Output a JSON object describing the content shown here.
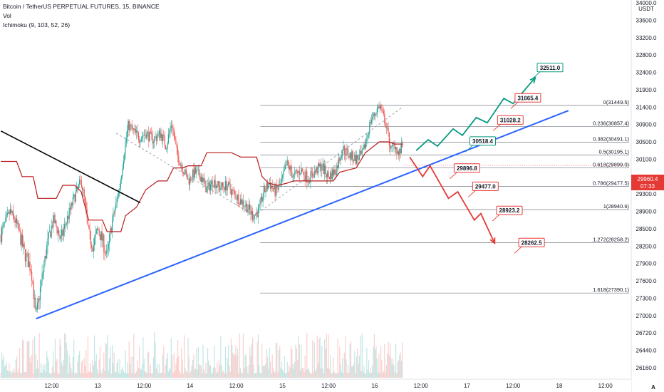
{
  "legend": {
    "symbol": "Bitcoin / TetherUS PERPETUAL FUTURES, 15, BINANCE",
    "vol": "Vol",
    "ichimoku": "Ichimoku (9, 103, 52, 26)"
  },
  "colors": {
    "up": "#26a69a",
    "down": "#ef5350",
    "blue": "#2962ff",
    "green": "#089981",
    "red": "#e53935",
    "black": "#000000",
    "fib": "#787b86",
    "cloud": "#b71c1c"
  },
  "price": {
    "current": "29960.4",
    "countdown": "07:33",
    "value": 29960.4
  },
  "chart_data": {
    "type": "candlestick",
    "currency": "USDT",
    "y_ticks": [
      26160,
      26440,
      26720,
      27000,
      27300,
      27600,
      27900,
      28200,
      28500,
      28900,
      29300,
      29700,
      30100,
      30500,
      30900,
      31400,
      31900,
      32400,
      32800,
      33200,
      33600,
      34000
    ],
    "y_tick_labels": [
      "26160.0",
      "26440.0",
      "26720.0",
      "27000.0",
      "27300.0",
      "27600.0",
      "27900.0",
      "28200.0",
      "28500.0",
      "28900.0",
      "29300.0",
      "29700.0",
      "30100.0",
      "30500.0",
      "30900.0",
      "31400.0",
      "31900.0",
      "32400.0",
      "32800.0",
      "33200.0",
      "33600.0",
      "34000.0"
    ],
    "x_ticks": [
      {
        "label": "12:00",
        "t": 0.5
      },
      {
        "label": "13",
        "t": 1.0
      },
      {
        "label": "12:00",
        "t": 1.5
      },
      {
        "label": "14",
        "t": 2.0
      },
      {
        "label": "12:00",
        "t": 2.5
      },
      {
        "label": "15",
        "t": 3.0
      },
      {
        "label": "12:00",
        "t": 3.5
      },
      {
        "label": "16",
        "t": 4.0
      },
      {
        "label": "12:00",
        "t": 4.5
      },
      {
        "label": "17",
        "t": 5.0
      },
      {
        "label": "12:00",
        "t": 5.5
      },
      {
        "label": "18",
        "t": 6.0
      },
      {
        "label": "12:00",
        "t": 6.5
      }
    ],
    "fib_levels": [
      {
        "label": "0(31449.5)",
        "price": 31449.5
      },
      {
        "label": "0.236(30857.4)",
        "price": 30857.4
      },
      {
        "label": "0.382(30491.1)",
        "price": 30491.1
      },
      {
        "label": "0.5(30195.1)",
        "price": 30195.1
      },
      {
        "label": "0.618(29899.0)",
        "price": 29899.0
      },
      {
        "label": "0.786(29477.5)",
        "price": 29477.5
      },
      {
        "label": "1(28940.6)",
        "price": 28940.6
      },
      {
        "label": "1.272(28258.2)",
        "price": 28258.2
      },
      {
        "label": "1.618(27390.1)",
        "price": 27390.1
      }
    ],
    "fib_range": {
      "t_start": 2.76,
      "t_end": 4.62
    },
    "price_path": [
      [
        -0.05,
        28400
      ],
      [
        0.05,
        28900
      ],
      [
        0.12,
        28600
      ],
      [
        0.2,
        28100
      ],
      [
        0.28,
        27800
      ],
      [
        0.33,
        26950
      ],
      [
        0.38,
        27500
      ],
      [
        0.45,
        28200
      ],
      [
        0.52,
        28700
      ],
      [
        0.6,
        28300
      ],
      [
        0.68,
        28800
      ],
      [
        0.75,
        29250
      ],
      [
        0.82,
        29600
      ],
      [
        0.86,
        29100
      ],
      [
        0.9,
        28400
      ],
      [
        0.95,
        28200
      ],
      [
        1.0,
        28500
      ],
      [
        1.05,
        28300
      ],
      [
        1.1,
        28000
      ],
      [
        1.15,
        28600
      ],
      [
        1.2,
        29100
      ],
      [
        1.24,
        29500
      ],
      [
        1.28,
        30200
      ],
      [
        1.33,
        30900
      ],
      [
        1.38,
        30750
      ],
      [
        1.45,
        30600
      ],
      [
        1.52,
        30700
      ],
      [
        1.6,
        30550
      ],
      [
        1.68,
        30700
      ],
      [
        1.74,
        30400
      ],
      [
        1.8,
        30950
      ],
      [
        1.86,
        30200
      ],
      [
        1.92,
        29900
      ],
      [
        1.98,
        29600
      ],
      [
        2.05,
        29800
      ],
      [
        2.12,
        29700
      ],
      [
        2.18,
        29400
      ],
      [
        2.25,
        29600
      ],
      [
        2.32,
        29450
      ],
      [
        2.4,
        29500
      ],
      [
        2.48,
        29300
      ],
      [
        2.55,
        29150
      ],
      [
        2.62,
        29000
      ],
      [
        2.68,
        28800
      ],
      [
        2.74,
        28900
      ],
      [
        2.8,
        29350
      ],
      [
        2.86,
        29550
      ],
      [
        2.92,
        29350
      ],
      [
        2.98,
        29500
      ],
      [
        3.05,
        30000
      ],
      [
        3.12,
        29700
      ],
      [
        3.2,
        29850
      ],
      [
        3.28,
        29650
      ],
      [
        3.35,
        29800
      ],
      [
        3.42,
        29950
      ],
      [
        3.5,
        29700
      ],
      [
        3.58,
        29850
      ],
      [
        3.65,
        30350
      ],
      [
        3.72,
        30200
      ],
      [
        3.8,
        30100
      ],
      [
        3.87,
        30200
      ],
      [
        3.92,
        30650
      ],
      [
        3.96,
        31050
      ],
      [
        4.0,
        31200
      ],
      [
        4.05,
        31450
      ],
      [
        4.1,
        31100
      ],
      [
        4.14,
        30700
      ],
      [
        4.18,
        30300
      ],
      [
        4.22,
        30450
      ],
      [
        4.26,
        30200
      ],
      [
        4.3,
        30400
      ]
    ],
    "ichimoku_path": [
      [
        -0.05,
        30050
      ],
      [
        0.12,
        30050
      ],
      [
        0.18,
        29700
      ],
      [
        0.3,
        29700
      ],
      [
        0.35,
        29200
      ],
      [
        0.55,
        29200
      ],
      [
        0.62,
        29500
      ],
      [
        0.75,
        29500
      ],
      [
        0.82,
        29350
      ],
      [
        0.9,
        28700
      ],
      [
        1.05,
        28700
      ],
      [
        1.1,
        28450
      ],
      [
        1.25,
        28450
      ],
      [
        1.3,
        28800
      ],
      [
        1.42,
        29000
      ],
      [
        1.52,
        29400
      ],
      [
        1.65,
        29600
      ],
      [
        1.75,
        29600
      ],
      [
        1.82,
        29900
      ],
      [
        1.92,
        29900
      ],
      [
        1.98,
        29950
      ],
      [
        2.12,
        29950
      ],
      [
        2.18,
        30250
      ],
      [
        2.45,
        30250
      ],
      [
        2.55,
        30150
      ],
      [
        2.72,
        30150
      ],
      [
        2.78,
        29700
      ],
      [
        2.85,
        29550
      ],
      [
        2.95,
        29500
      ],
      [
        3.05,
        29550
      ],
      [
        3.12,
        29600
      ],
      [
        3.55,
        29600
      ],
      [
        3.62,
        29800
      ],
      [
        3.8,
        29900
      ],
      [
        3.9,
        30250
      ],
      [
        4.05,
        30500
      ],
      [
        4.15,
        30500
      ],
      [
        4.22,
        30450
      ],
      [
        4.3,
        30450
      ]
    ],
    "trend_black": [
      [
        -0.05,
        30750
      ],
      [
        1.46,
        29100
      ]
    ],
    "trend_blue": [
      [
        0.33,
        26950
      ],
      [
        6.1,
        31300
      ]
    ],
    "dash_channel": [
      [
        [
          1.2,
          30700
        ],
        [
          2.7,
          28800
        ]
      ],
      [
        [
          2.7,
          28800
        ],
        [
          4.3,
          31400
        ]
      ]
    ],
    "green_path": [
      [
        4.45,
        30300
      ],
      [
        4.58,
        30550
      ],
      [
        4.68,
        30400
      ],
      [
        4.85,
        30800
      ],
      [
        4.95,
        30650
      ],
      [
        5.1,
        31100
      ],
      [
        5.22,
        30950
      ],
      [
        5.4,
        31650
      ],
      [
        5.5,
        31500
      ],
      [
        5.74,
        32250
      ]
    ],
    "red_path": [
      [
        4.38,
        30150
      ],
      [
        4.52,
        29700
      ],
      [
        4.6,
        29950
      ],
      [
        4.8,
        29200
      ],
      [
        4.9,
        29350
      ],
      [
        5.08,
        28700
      ],
      [
        5.15,
        28850
      ],
      [
        5.3,
        28250
      ]
    ],
    "projections": [
      {
        "label": "32511.0",
        "price": 32511.0,
        "t": 5.9
      },
      {
        "label": "31665.4",
        "price": 31665.4,
        "t": 5.66
      },
      {
        "label": "31028.2",
        "price": 31028.2,
        "t": 5.47
      },
      {
        "label": "30518.4",
        "price": 30518.4,
        "t": 5.17
      },
      {
        "label": "29896.8",
        "price": 29896.8,
        "t": 5.0
      },
      {
        "label": "29477.0",
        "price": 29477.0,
        "t": 5.2
      },
      {
        "label": "28923.2",
        "price": 28923.2,
        "t": 5.46
      },
      {
        "label": "28262.5",
        "price": 28262.5,
        "t": 5.7
      }
    ],
    "projection_colors": [
      "green",
      "red",
      "red",
      "green",
      "red",
      "red",
      "red",
      "red"
    ],
    "ylim": [
      26100,
      34050
    ],
    "xlim": [
      -0.06,
      6.78
    ]
  }
}
